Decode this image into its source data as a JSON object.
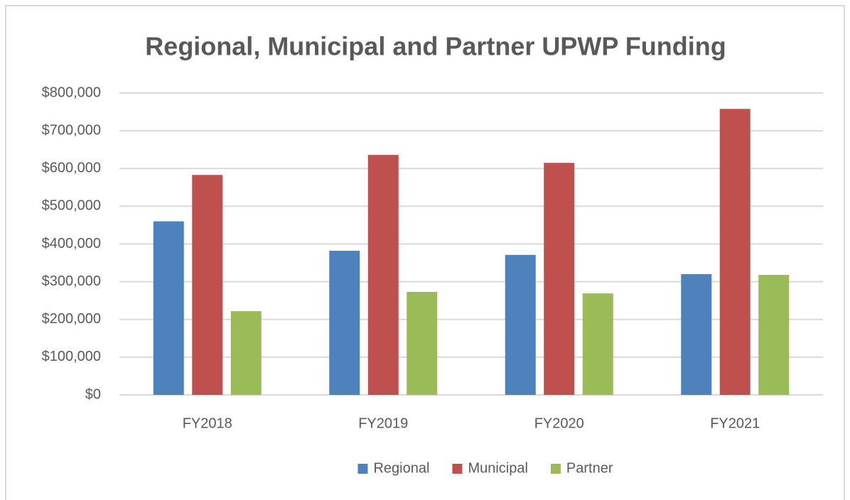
{
  "chart_data": {
    "type": "bar",
    "title": "Regional, Municipal and Partner UPWP Funding",
    "categories": [
      "FY2018",
      "FY2019",
      "FY2020",
      "FY2021"
    ],
    "series": [
      {
        "name": "Regional",
        "color": "#4f81bd",
        "values": [
          460000,
          382000,
          371000,
          320000
        ]
      },
      {
        "name": "Municipal",
        "color": "#c0504d",
        "values": [
          583000,
          636000,
          615000,
          758000
        ]
      },
      {
        "name": "Partner",
        "color": "#9bbb59",
        "values": [
          222000,
          273000,
          269000,
          318000
        ]
      }
    ],
    "ylim": [
      0,
      800000
    ],
    "yticks": [
      {
        "value": 0,
        "label": "$0"
      },
      {
        "value": 100000,
        "label": "$100,000"
      },
      {
        "value": 200000,
        "label": "$200,000"
      },
      {
        "value": 300000,
        "label": "$300,000"
      },
      {
        "value": 400000,
        "label": "$400,000"
      },
      {
        "value": 500000,
        "label": "$500,000"
      },
      {
        "value": 600000,
        "label": "$600,000"
      },
      {
        "value": 700000,
        "label": "$700,000"
      },
      {
        "value": 800000,
        "label": "$800,000"
      }
    ],
    "grid": true,
    "legend": "bottom"
  }
}
